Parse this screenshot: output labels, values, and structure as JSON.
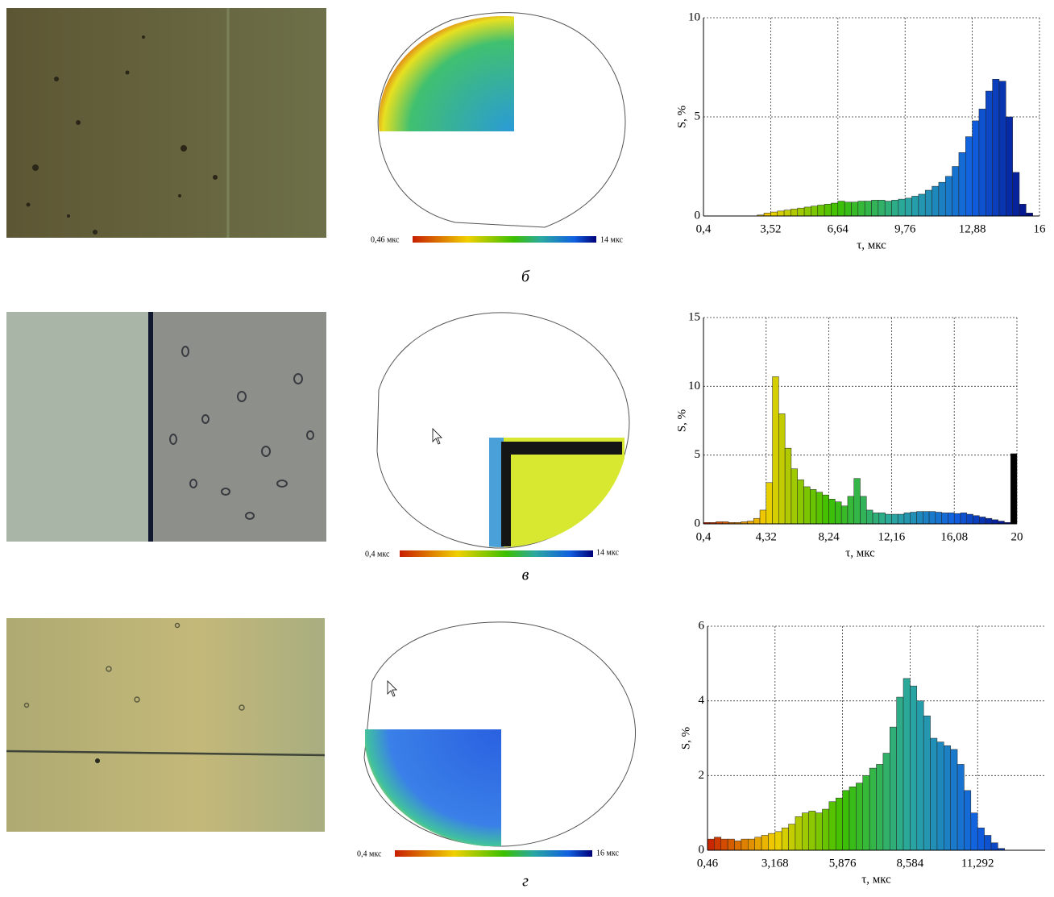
{
  "chart_data": [
    {
      "type": "histogram",
      "x_label": "τ, мкс",
      "y_label": "S, %",
      "bins": [
        0.4,
        0.712,
        1.024,
        1.336,
        1.648,
        1.96,
        2.272,
        2.584,
        2.896,
        3.208,
        3.52,
        3.832,
        4.144,
        4.456,
        4.768,
        5.08,
        5.392,
        5.704,
        6.016,
        6.328,
        6.64,
        6.952,
        7.264,
        7.576,
        7.888,
        8.2,
        8.512,
        8.824,
        9.136,
        9.448,
        9.76,
        10.072,
        10.384,
        10.696,
        11.008,
        11.32,
        11.632,
        11.944,
        12.256,
        12.568,
        12.88,
        13.192,
        13.504,
        13.816,
        14.128,
        14.44,
        14.752,
        15.064,
        15.376,
        15.688,
        16
      ],
      "values": [
        0,
        0,
        0,
        0,
        0,
        0,
        0,
        0,
        0.05,
        0.15,
        0.2,
        0.25,
        0.3,
        0.35,
        0.4,
        0.45,
        0.5,
        0.55,
        0.6,
        0.65,
        0.75,
        0.7,
        0.7,
        0.75,
        0.75,
        0.8,
        0.8,
        0.75,
        0.8,
        0.85,
        0.9,
        1.0,
        1.1,
        1.3,
        1.5,
        1.7,
        2.0,
        2.5,
        3.2,
        4.0,
        4.8,
        5.4,
        6.3,
        6.9,
        6.8,
        5.0,
        2.2,
        0.6,
        0.15,
        0
      ],
      "colormap": [
        "#c81e00",
        "#f0d000",
        "#3cc000",
        "#2aa8a0",
        "#1060e0",
        "#000078"
      ],
      "xlim": [
        0.4,
        16
      ],
      "ylim": [
        0,
        10
      ],
      "xticks": [
        {
          "value": 0.4,
          "label": "0,4"
        },
        {
          "value": 3.52,
          "label": "3,52"
        },
        {
          "value": 6.64,
          "label": "6,64"
        },
        {
          "value": 9.76,
          "label": "9,76"
        },
        {
          "value": 12.88,
          "label": "12,88"
        },
        16
      ],
      "yticks": [
        0,
        5,
        10
      ],
      "grid": true
    },
    {
      "type": "histogram",
      "x_label": "τ, мкс",
      "y_label": "S, %",
      "bins": [
        0.4,
        0.792,
        1.184,
        1.576,
        1.968,
        2.36,
        2.752,
        3.144,
        3.536,
        3.928,
        4.32,
        4.712,
        5.104,
        5.496,
        5.888,
        6.28,
        6.672,
        7.064,
        7.456,
        7.848,
        8.24,
        8.632,
        9.024,
        9.416,
        9.808,
        10.2,
        10.592,
        10.984,
        11.376,
        11.768,
        12.16,
        12.552,
        12.944,
        13.336,
        13.728,
        14.12,
        14.512,
        14.904,
        15.296,
        15.688,
        16.08,
        16.472,
        16.864,
        17.256,
        17.648,
        18.04,
        18.432,
        18.824,
        19.216,
        19.608,
        20
      ],
      "values": [
        0.1,
        0.1,
        0.15,
        0.15,
        0.1,
        0.1,
        0.15,
        0.2,
        0.4,
        1.0,
        3.0,
        10.7,
        8.0,
        5.5,
        4.0,
        3.2,
        2.7,
        2.5,
        2.3,
        2.1,
        1.8,
        1.6,
        1.3,
        2.0,
        3.3,
        2.0,
        1.0,
        0.8,
        0.8,
        0.7,
        0.7,
        0.7,
        0.8,
        0.85,
        0.9,
        0.9,
        0.9,
        0.85,
        0.8,
        0.8,
        0.75,
        0.8,
        0.7,
        0.6,
        0.5,
        0.4,
        0.3,
        0.2,
        0.1,
        5.1
      ],
      "colormap": [
        "#c81e00",
        "#f0d000",
        "#3cc000",
        "#2aa8a0",
        "#1060e0",
        "#000078"
      ],
      "last_bar_color": "#000000",
      "xlim": [
        0.4,
        20
      ],
      "ylim": [
        0,
        15
      ],
      "xticks": [
        {
          "value": 0.4,
          "label": "0,4"
        },
        {
          "value": 4.32,
          "label": "4,32"
        },
        {
          "value": 8.24,
          "label": "8,24"
        },
        {
          "value": 12.16,
          "label": "12,16"
        },
        {
          "value": 16.08,
          "label": "16,08"
        },
        20
      ],
      "yticks": [
        0,
        5,
        10,
        15
      ],
      "grid": true
    },
    {
      "type": "histogram",
      "x_label": "τ, мкс",
      "y_label": "S, %",
      "bins": [
        0.46,
        0.7308,
        1.0016,
        1.2724,
        1.5432,
        1.814,
        2.0848,
        2.3556,
        2.6264,
        2.8972,
        3.168,
        3.4388,
        3.7096,
        3.9804,
        4.2512,
        4.522,
        4.7928,
        5.0636,
        5.3344,
        5.6052,
        5.876,
        6.1468,
        6.4176,
        6.6884,
        6.9592,
        7.23,
        7.5008,
        7.7716,
        8.0424,
        8.3132,
        8.584,
        8.8548,
        9.1256,
        9.3964,
        9.6672,
        9.938,
        10.2088,
        10.4796,
        10.7504,
        11.0212,
        11.292,
        11.5628,
        11.8336,
        12.1044,
        12.3752,
        12.646,
        12.9168,
        13.1876,
        13.4584,
        13.7292,
        14.0
      ],
      "values": [
        0.3,
        0.35,
        0.3,
        0.3,
        0.25,
        0.3,
        0.3,
        0.35,
        0.4,
        0.45,
        0.5,
        0.6,
        0.7,
        0.9,
        1.0,
        1.05,
        1.0,
        1.1,
        1.3,
        1.4,
        1.6,
        1.7,
        1.8,
        2.0,
        2.2,
        2.3,
        2.6,
        3.3,
        4.1,
        4.6,
        4.4,
        4.0,
        3.6,
        3.0,
        2.9,
        2.8,
        2.7,
        2.3,
        1.6,
        1.0,
        0.6,
        0.4,
        0.2,
        0.05,
        0,
        0,
        0,
        0,
        0,
        0
      ],
      "colormap": [
        "#c81e00",
        "#f0d000",
        "#3cc000",
        "#2aa8a0",
        "#1060e0",
        "#000078"
      ],
      "xlim": [
        0.46,
        14.0
      ],
      "ylim": [
        0,
        6
      ],
      "xticks": [
        {
          "value": 0.46,
          "label": "0,46"
        },
        {
          "value": 3.168,
          "label": "3,168"
        },
        {
          "value": 5.876,
          "label": "5,876"
        },
        {
          "value": 8.584,
          "label": "8,584"
        },
        {
          "value": 11.292,
          "label": "11,292"
        }
      ],
      "yticks": [
        0,
        2,
        4,
        6
      ],
      "grid": true
    }
  ],
  "panels": [
    {
      "label": "б",
      "colorbar_min": "0,46 мкс",
      "colorbar_max": "14 мкс"
    },
    {
      "label": "в",
      "colorbar_min": "0,4 мкс",
      "colorbar_max": "14 мкс"
    },
    {
      "label": "г",
      "colorbar_min": "0,4 мкс",
      "colorbar_max": "16 мкс"
    }
  ]
}
